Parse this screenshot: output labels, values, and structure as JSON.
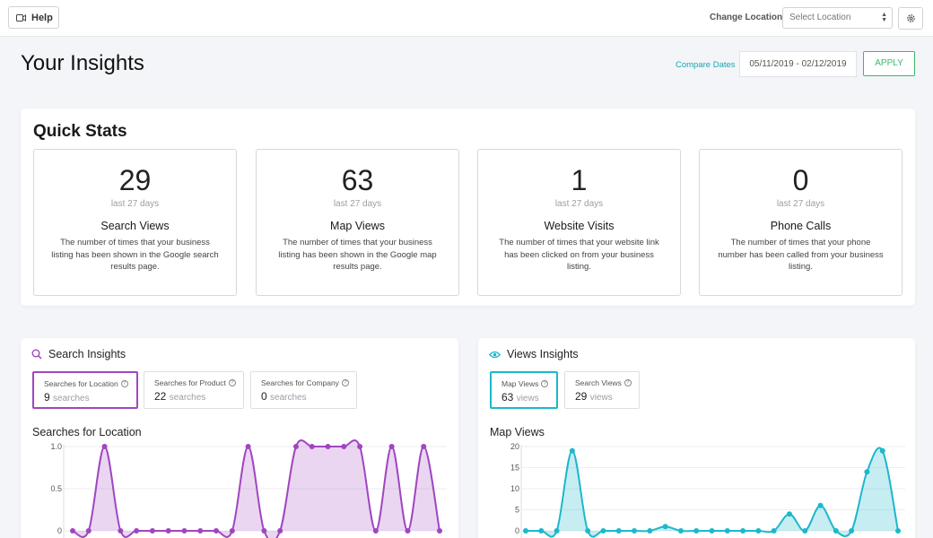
{
  "topbar": {
    "help_label": "Help",
    "change_location_label": "Change Location:",
    "location_placeholder": "Select Location"
  },
  "header": {
    "title": "Your Insights",
    "compare_dates": "Compare Dates",
    "date_range": "05/11/2019 - 02/12/2019",
    "apply_label": "APPLY"
  },
  "quick_stats": {
    "title": "Quick Stats",
    "items": [
      {
        "value": "29",
        "period": "last 27 days",
        "label": "Search Views",
        "description": "The number of times that your business listing has been shown in the Google search results page."
      },
      {
        "value": "63",
        "period": "last 27 days",
        "label": "Map Views",
        "description": "The number of times that your business listing has been shown in the Google map results page."
      },
      {
        "value": "1",
        "period": "last 27 days",
        "label": "Website Visits",
        "description": "The number of times that your website link has been clicked on from your business listing."
      },
      {
        "value": "0",
        "period": "last 27 days",
        "label": "Phone Calls",
        "description": "The number of times that your phone number has been called from your business listing."
      }
    ]
  },
  "search_insights": {
    "title": "Search Insights",
    "tabs": [
      {
        "label": "Searches for Location",
        "value": "9",
        "unit": "searches"
      },
      {
        "label": "Searches for Product",
        "value": "22",
        "unit": "searches"
      },
      {
        "label": "Searches for Company",
        "value": "0",
        "unit": "searches"
      }
    ],
    "chart_title": "Searches for Location"
  },
  "views_insights": {
    "title": "Views Insights",
    "tabs": [
      {
        "label": "Map Views",
        "value": "63",
        "unit": "views"
      },
      {
        "label": "Search Views",
        "value": "29",
        "unit": "views"
      }
    ],
    "chart_title": "Map Views"
  },
  "colors": {
    "accent_teal": "#14a8b8",
    "apply_green": "#3bb96a",
    "search_purple": "#a046c0",
    "views_cyan": "#1cb8cc"
  },
  "chart_data": [
    {
      "type": "area",
      "title": "Searches for Location",
      "ylim": [
        0,
        1.0
      ],
      "y_ticks": [
        "0",
        "0.5",
        "1.0"
      ],
      "series": [
        {
          "values": [
            0,
            0,
            1,
            0,
            0,
            0,
            0,
            0,
            0,
            0,
            0,
            1,
            0,
            0,
            1,
            1,
            1,
            1,
            1,
            0,
            1,
            0,
            1,
            0
          ]
        }
      ]
    },
    {
      "type": "area",
      "title": "Map Views",
      "ylim": [
        0,
        20
      ],
      "y_ticks": [
        "0",
        "5",
        "10",
        "15",
        "20"
      ],
      "series": [
        {
          "values": [
            0,
            0,
            0,
            19,
            0,
            0,
            0,
            0,
            0,
            1,
            0,
            0,
            0,
            0,
            0,
            0,
            0,
            4,
            0,
            6,
            0,
            0,
            14,
            19,
            0
          ]
        }
      ]
    }
  ]
}
